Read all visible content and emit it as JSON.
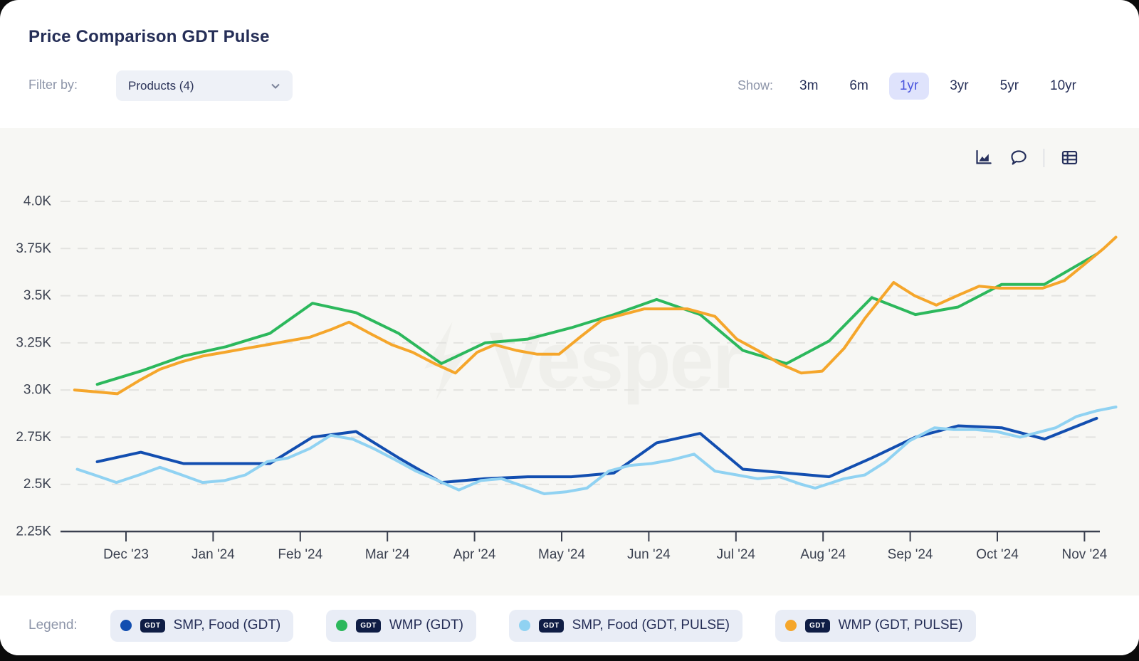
{
  "header": {
    "title": "Price Comparison GDT Pulse",
    "filter_label": "Filter by:",
    "filter_value": "Products (4)",
    "show_label": "Show:",
    "ranges": [
      "3m",
      "6m",
      "1yr",
      "3yr",
      "5yr",
      "10yr"
    ],
    "selected_range": "1yr"
  },
  "toolbar": {
    "icons": [
      "area-chart-icon",
      "comment-icon",
      "table-icon"
    ]
  },
  "watermark": "Vesper",
  "legend": {
    "label": "Legend:",
    "items": [
      {
        "badge": "GDT",
        "name": "SMP, Food (GDT)",
        "color": "#124eb0"
      },
      {
        "badge": "GDT",
        "name": "WMP (GDT)",
        "color": "#2cb85c"
      },
      {
        "badge": "GDT",
        "name": "SMP, Food (GDT, PULSE)",
        "color": "#90d2f2"
      },
      {
        "badge": "GDT",
        "name": "WMP (GDT, PULSE)",
        "color": "#f5a62b"
      }
    ]
  },
  "chart_data": {
    "type": "line",
    "title": "Price Comparison GDT Pulse",
    "unit": "K",
    "ylim": [
      2.25,
      4.0
    ],
    "grid": true,
    "y_ticks": [
      "4.0K",
      "3.75K",
      "3.5K",
      "3.25K",
      "3.0K",
      "2.75K",
      "2.5K",
      "2.25K"
    ],
    "y_tick_values": [
      4.0,
      3.75,
      3.5,
      3.25,
      3.0,
      2.75,
      2.5,
      2.25
    ],
    "x_ticks": [
      "Dec '23",
      "Jan '24",
      "Feb '24",
      "Mar '24",
      "Apr '24",
      "May '24",
      "Jun '24",
      "Jul '24",
      "Aug '24",
      "Sep '24",
      "Oct '24",
      "Nov '24"
    ],
    "x_unit_note": "x = months offset from Dec '23 tick",
    "series": [
      {
        "name": "SMP, Food (GDT)",
        "color": "#124eb0",
        "points": [
          [
            -0.33,
            2.62
          ],
          [
            0.17,
            2.67
          ],
          [
            0.66,
            2.61
          ],
          [
            1.15,
            2.61
          ],
          [
            1.65,
            2.61
          ],
          [
            2.14,
            2.75
          ],
          [
            2.64,
            2.78
          ],
          [
            3.13,
            2.64
          ],
          [
            3.62,
            2.51
          ],
          [
            4.12,
            2.53
          ],
          [
            4.61,
            2.54
          ],
          [
            5.11,
            2.54
          ],
          [
            5.6,
            2.56
          ],
          [
            6.09,
            2.72
          ],
          [
            6.59,
            2.77
          ],
          [
            7.08,
            2.58
          ],
          [
            7.58,
            2.56
          ],
          [
            8.07,
            2.54
          ],
          [
            8.56,
            2.64
          ],
          [
            9.06,
            2.75
          ],
          [
            9.55,
            2.81
          ],
          [
            10.05,
            2.8
          ],
          [
            10.54,
            2.74
          ],
          [
            11.14,
            2.85
          ]
        ]
      },
      {
        "name": "WMP (GDT)",
        "color": "#2cb85c",
        "points": [
          [
            -0.33,
            3.03
          ],
          [
            0.17,
            3.1
          ],
          [
            0.66,
            3.18
          ],
          [
            1.15,
            3.23
          ],
          [
            1.65,
            3.3
          ],
          [
            2.14,
            3.46
          ],
          [
            2.64,
            3.41
          ],
          [
            3.13,
            3.3
          ],
          [
            3.62,
            3.14
          ],
          [
            4.12,
            3.25
          ],
          [
            4.61,
            3.27
          ],
          [
            5.11,
            3.33
          ],
          [
            5.6,
            3.4
          ],
          [
            6.09,
            3.48
          ],
          [
            6.59,
            3.4
          ],
          [
            7.08,
            3.21
          ],
          [
            7.58,
            3.14
          ],
          [
            8.07,
            3.26
          ],
          [
            8.56,
            3.49
          ],
          [
            9.06,
            3.4
          ],
          [
            9.55,
            3.44
          ],
          [
            10.05,
            3.56
          ],
          [
            10.54,
            3.56
          ],
          [
            11.14,
            3.72
          ]
        ]
      },
      {
        "name": "SMP, Food (GDT, PULSE)",
        "color": "#90d2f2",
        "points": [
          [
            -0.56,
            2.58
          ],
          [
            -0.3,
            2.54
          ],
          [
            -0.11,
            2.51
          ],
          [
            0.15,
            2.55
          ],
          [
            0.39,
            2.59
          ],
          [
            0.64,
            2.55
          ],
          [
            0.88,
            2.51
          ],
          [
            1.13,
            2.52
          ],
          [
            1.37,
            2.55
          ],
          [
            1.62,
            2.62
          ],
          [
            1.86,
            2.64
          ],
          [
            2.11,
            2.69
          ],
          [
            2.35,
            2.76
          ],
          [
            2.6,
            2.74
          ],
          [
            2.84,
            2.69
          ],
          [
            3.09,
            2.63
          ],
          [
            3.33,
            2.57
          ],
          [
            3.58,
            2.52
          ],
          [
            3.82,
            2.47
          ],
          [
            4.07,
            2.52
          ],
          [
            4.31,
            2.53
          ],
          [
            4.56,
            2.49
          ],
          [
            4.8,
            2.45
          ],
          [
            5.05,
            2.46
          ],
          [
            5.29,
            2.48
          ],
          [
            5.54,
            2.57
          ],
          [
            5.78,
            2.6
          ],
          [
            6.03,
            2.61
          ],
          [
            6.27,
            2.63
          ],
          [
            6.52,
            2.66
          ],
          [
            6.76,
            2.57
          ],
          [
            7.01,
            2.55
          ],
          [
            7.25,
            2.53
          ],
          [
            7.5,
            2.54
          ],
          [
            7.75,
            2.5
          ],
          [
            7.91,
            2.48
          ],
          [
            8.24,
            2.53
          ],
          [
            8.48,
            2.55
          ],
          [
            8.72,
            2.62
          ],
          [
            8.99,
            2.73
          ],
          [
            9.28,
            2.8
          ],
          [
            9.5,
            2.79
          ],
          [
            9.75,
            2.79
          ],
          [
            9.99,
            2.78
          ],
          [
            10.26,
            2.75
          ],
          [
            10.67,
            2.8
          ],
          [
            10.91,
            2.86
          ],
          [
            11.14,
            2.89
          ],
          [
            11.36,
            2.91
          ]
        ]
      },
      {
        "name": "WMP (GDT, PULSE)",
        "color": "#f5a62b",
        "points": [
          [
            -0.59,
            3.0
          ],
          [
            -0.34,
            2.99
          ],
          [
            -0.1,
            2.98
          ],
          [
            0.15,
            3.05
          ],
          [
            0.39,
            3.11
          ],
          [
            0.64,
            3.15
          ],
          [
            0.88,
            3.18
          ],
          [
            1.13,
            3.2
          ],
          [
            1.37,
            3.22
          ],
          [
            1.62,
            3.24
          ],
          [
            1.86,
            3.26
          ],
          [
            2.11,
            3.28
          ],
          [
            2.35,
            3.32
          ],
          [
            2.56,
            3.36
          ],
          [
            2.8,
            3.3
          ],
          [
            3.05,
            3.24
          ],
          [
            3.29,
            3.2
          ],
          [
            3.54,
            3.14
          ],
          [
            3.78,
            3.09
          ],
          [
            4.03,
            3.2
          ],
          [
            4.23,
            3.24
          ],
          [
            4.48,
            3.21
          ],
          [
            4.72,
            3.19
          ],
          [
            4.97,
            3.19
          ],
          [
            5.21,
            3.28
          ],
          [
            5.46,
            3.37
          ],
          [
            5.7,
            3.4
          ],
          [
            5.95,
            3.43
          ],
          [
            6.19,
            3.43
          ],
          [
            6.44,
            3.43
          ],
          [
            6.76,
            3.39
          ],
          [
            7.01,
            3.27
          ],
          [
            7.25,
            3.21
          ],
          [
            7.5,
            3.14
          ],
          [
            7.75,
            3.09
          ],
          [
            7.99,
            3.1
          ],
          [
            8.24,
            3.22
          ],
          [
            8.48,
            3.38
          ],
          [
            8.81,
            3.57
          ],
          [
            9.05,
            3.5
          ],
          [
            9.3,
            3.45
          ],
          [
            9.54,
            3.5
          ],
          [
            9.79,
            3.55
          ],
          [
            10.03,
            3.54
          ],
          [
            10.28,
            3.54
          ],
          [
            10.52,
            3.54
          ],
          [
            10.77,
            3.58
          ],
          [
            11.01,
            3.67
          ],
          [
            11.22,
            3.75
          ],
          [
            11.36,
            3.81
          ]
        ]
      }
    ]
  }
}
